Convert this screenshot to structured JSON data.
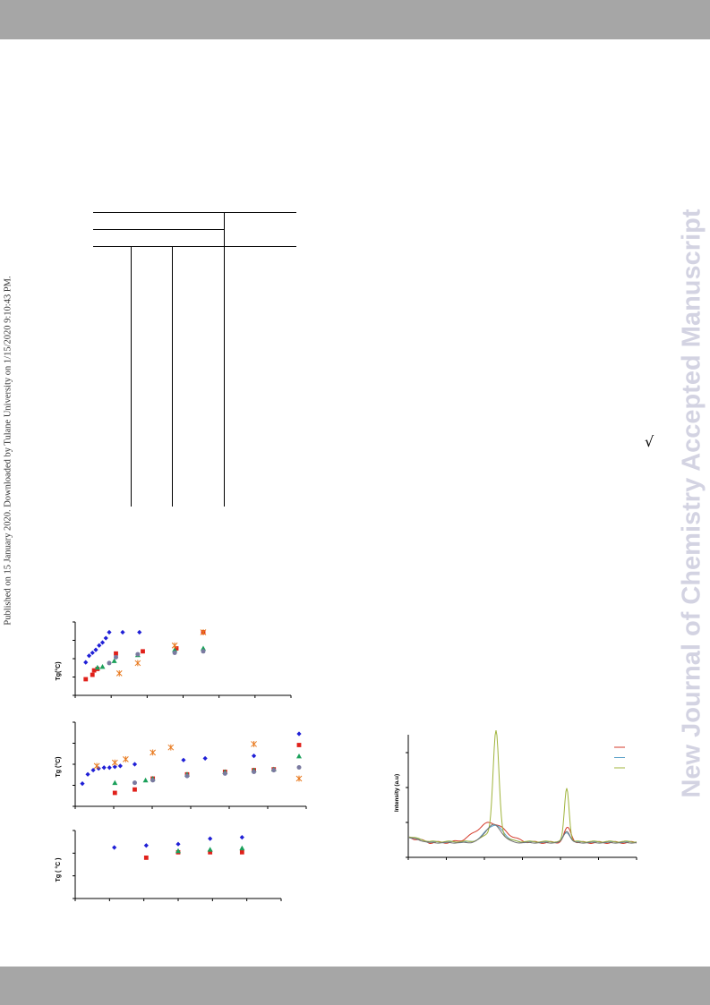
{
  "header": {
    "band_color": "#a6a6a6"
  },
  "footer": {
    "band_color": "#a6a6a6"
  },
  "margin_note": {
    "published_text": "Published on 15 January 2020. Downloaded by Tulane University on 1/15/2020 9:10:43 PM."
  },
  "watermark": {
    "text": "New Journal of Chemistry Accepted Manuscript",
    "color": "#d3d3e2"
  },
  "inline_symbol": {
    "text": "√"
  },
  "table": {
    "rule_color": "#000000"
  },
  "charts": {
    "colors": {
      "blue": "#1f1fd6",
      "red": "#e0201a",
      "green": "#1aa05a",
      "purple": "#7a7aa0",
      "orange": "#e8781c",
      "red_line": "#d43a2a",
      "blue_line": "#5aa0c8",
      "green_line": "#a0b43c",
      "gray_line": "#707070"
    }
  },
  "chart_data": [
    {
      "type": "scatter",
      "ylabel": "Tg(°C)",
      "series": [
        {
          "marker": "diamond",
          "color": "#1f1fd6",
          "values": [
            [
              0.1,
              0.45
            ],
            [
              0.2,
              0.54
            ],
            [
              0.3,
              0.58
            ],
            [
              0.4,
              0.62
            ],
            [
              0.5,
              0.68
            ],
            [
              0.6,
              0.72
            ],
            [
              0.7,
              0.78
            ],
            [
              0.8,
              0.86
            ],
            [
              1.2,
              0.86
            ],
            [
              1.7,
              0.86
            ]
          ]
        },
        {
          "marker": "square",
          "color": "#e0201a",
          "values": [
            [
              0.1,
              0.22
            ],
            [
              0.3,
              0.28
            ],
            [
              0.35,
              0.34
            ],
            [
              0.45,
              0.36
            ],
            [
              1.0,
              0.57
            ],
            [
              1.8,
              0.6
            ],
            [
              2.8,
              0.64
            ],
            [
              3.6,
              0.86
            ]
          ]
        },
        {
          "marker": "triangle",
          "color": "#1aa05a",
          "values": [
            [
              0.45,
              0.38
            ],
            [
              0.6,
              0.39
            ],
            [
              0.95,
              0.47
            ],
            [
              1.65,
              0.55
            ],
            [
              2.75,
              0.62
            ],
            [
              3.6,
              0.64
            ]
          ]
        },
        {
          "marker": "circle",
          "color": "#7a7aa0",
          "values": [
            [
              0.8,
              0.44
            ],
            [
              1.0,
              0.52
            ],
            [
              1.65,
              0.56
            ],
            [
              2.75,
              0.58
            ],
            [
              3.6,
              0.6
            ]
          ]
        },
        {
          "marker": "asterisk",
          "color": "#e8781c",
          "values": [
            [
              1.1,
              0.3
            ],
            [
              1.65,
              0.44
            ],
            [
              2.75,
              0.68
            ],
            [
              3.6,
              0.86
            ]
          ]
        }
      ]
    },
    {
      "type": "scatter",
      "ylabel": "Tg (°C)",
      "series": [
        {
          "marker": "diamond",
          "color": "#1f1fd6",
          "values": [
            [
              0.0,
              0.27
            ],
            [
              0.15,
              0.38
            ],
            [
              0.3,
              0.43
            ],
            [
              0.45,
              0.45
            ],
            [
              0.6,
              0.46
            ],
            [
              0.75,
              0.46
            ],
            [
              0.9,
              0.47
            ],
            [
              1.05,
              0.48
            ],
            [
              1.45,
              0.5
            ],
            [
              2.8,
              0.55
            ],
            [
              3.4,
              0.57
            ],
            [
              4.75,
              0.6
            ]
          ]
        },
        {
          "marker": "square",
          "color": "#e0201a",
          "values": [
            [
              0.9,
              0.16
            ],
            [
              1.45,
              0.2
            ],
            [
              1.95,
              0.33
            ],
            [
              2.9,
              0.38
            ],
            [
              3.95,
              0.41
            ],
            [
              4.75,
              0.43
            ],
            [
              5.3,
              0.44
            ]
          ]
        },
        {
          "marker": "triangle",
          "color": "#1aa05a",
          "values": [
            [
              0.9,
              0.28
            ],
            [
              1.75,
              0.31
            ],
            [
              1.95,
              0.33
            ],
            [
              2.9,
              0.38
            ],
            [
              3.95,
              0.41
            ],
            [
              4.75,
              0.43
            ],
            [
              5.3,
              0.44
            ]
          ]
        },
        {
          "marker": "circle",
          "color": "#7a7aa0",
          "values": [
            [
              1.45,
              0.28
            ],
            [
              1.95,
              0.31
            ],
            [
              2.9,
              0.36
            ],
            [
              3.95,
              0.39
            ],
            [
              4.75,
              0.41
            ],
            [
              5.3,
              0.43
            ]
          ]
        },
        {
          "marker": "asterisk",
          "color": "#e8781c",
          "values": [
            [
              0.4,
              0.48
            ],
            [
              0.9,
              0.52
            ],
            [
              1.2,
              0.56
            ],
            [
              1.95,
              0.64
            ],
            [
              2.45,
              0.7
            ],
            [
              4.75,
              0.74
            ]
          ]
        }
      ]
    },
    {
      "type": "scatter",
      "ylabel": "Tg ( °C )",
      "series": [
        {
          "marker": "diamond",
          "color": "#1f1fd6",
          "values": [
            [
              1,
              0.75
            ],
            [
              2,
              0.78
            ],
            [
              3,
              0.8
            ],
            [
              4,
              0.88
            ],
            [
              5,
              0.9
            ]
          ]
        },
        {
          "marker": "square",
          "color": "#e0201a",
          "values": [
            [
              2,
              0.6
            ],
            [
              3,
              0.68
            ],
            [
              4,
              0.68
            ],
            [
              5,
              0.68
            ]
          ]
        },
        {
          "marker": "triangle",
          "color": "#1aa05a",
          "values": [
            [
              3,
              0.7
            ],
            [
              4,
              0.72
            ],
            [
              5,
              0.74
            ]
          ]
        }
      ]
    },
    {
      "type": "line",
      "ylabel": "Intensity (a.u)",
      "series": [
        {
          "color": "#d43a2a"
        },
        {
          "color": "#5aa0c8"
        },
        {
          "color": "#a0b43c"
        },
        {
          "color": "#707070"
        }
      ]
    }
  ]
}
